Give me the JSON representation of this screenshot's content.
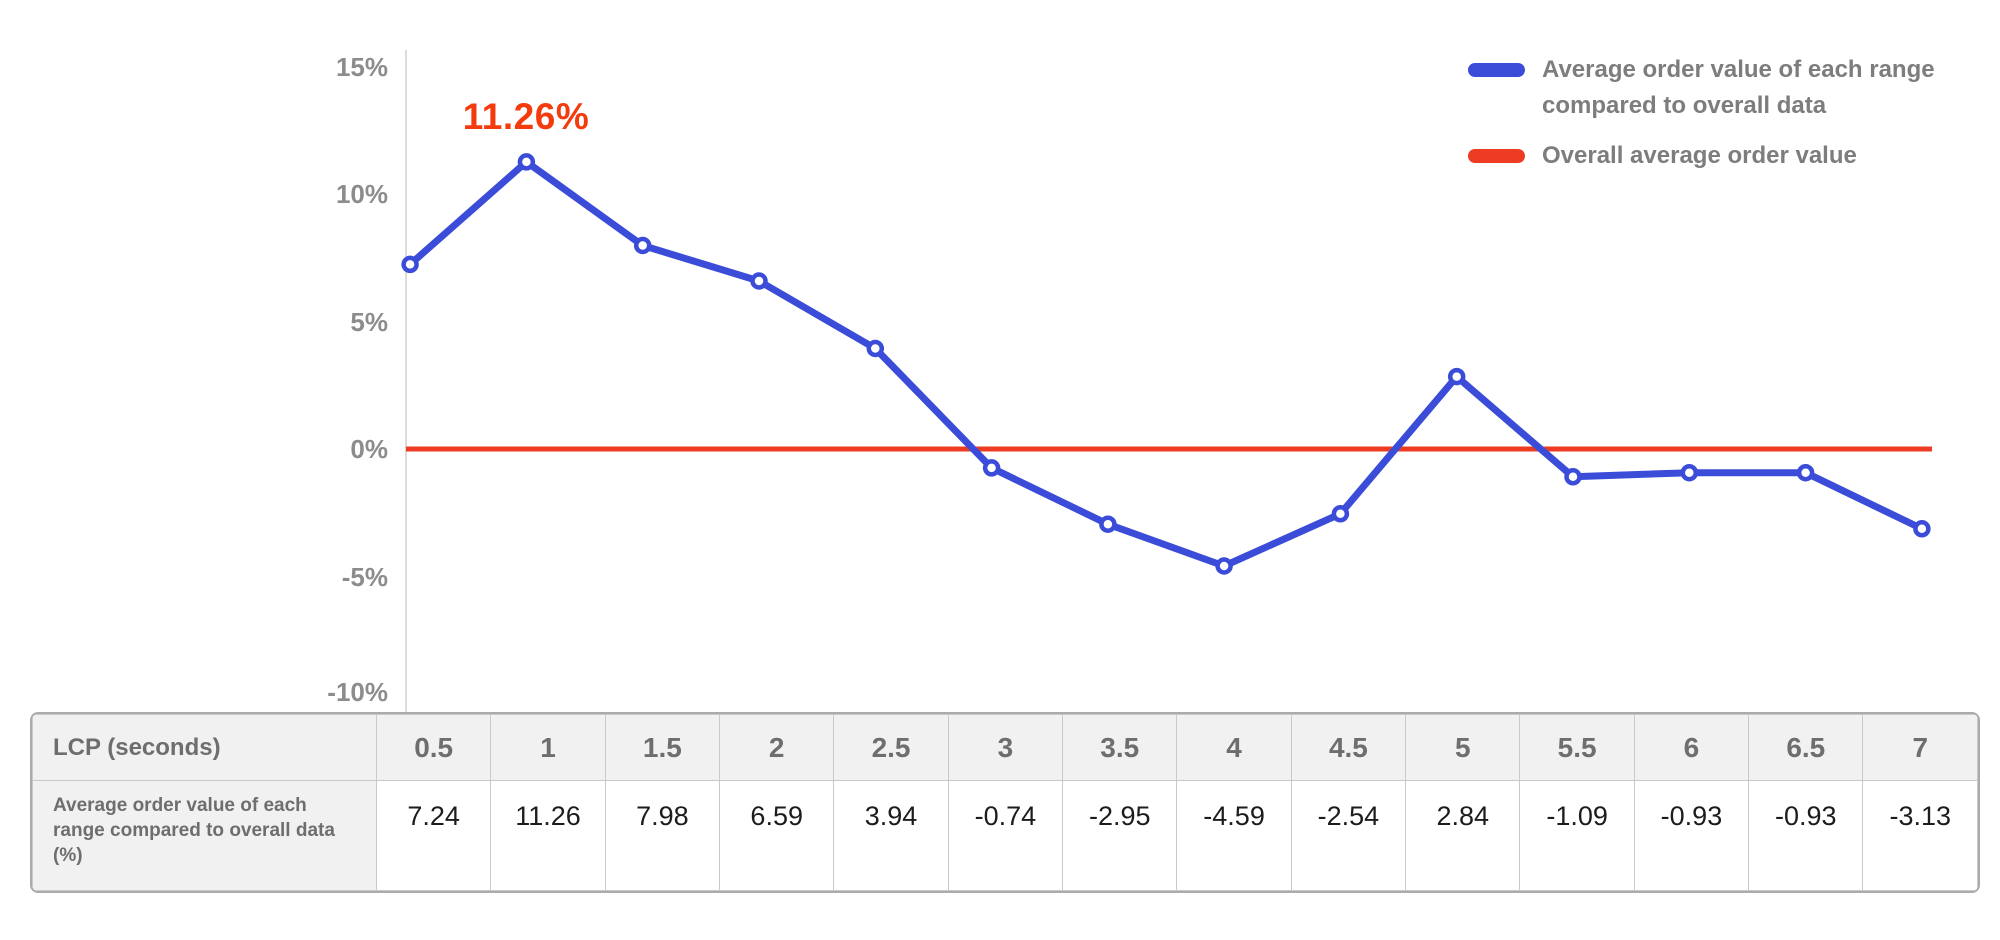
{
  "chart_data": {
    "type": "line",
    "x_values": [
      0.5,
      1,
      1.5,
      2,
      2.5,
      3,
      3.5,
      4,
      4.5,
      5,
      5.5,
      6,
      6.5,
      7
    ],
    "xlabel": "LCP (seconds)",
    "ylabel": "",
    "ylim": [
      -10,
      15
    ],
    "y_tick_labels": [
      "15%",
      "10%",
      "5%",
      "0%",
      "-5%",
      "-10%"
    ],
    "y_tick_values": [
      15,
      10,
      5,
      0,
      -5,
      -10
    ],
    "grid": false,
    "legend_position": "top-right",
    "series": [
      {
        "name": "Average order value of each range compared to overall data",
        "color": "#3b4dd8",
        "values": [
          7.24,
          11.26,
          7.98,
          6.59,
          3.94,
          -0.74,
          -2.95,
          -4.59,
          -2.54,
          2.84,
          -1.09,
          -0.93,
          -0.93,
          -3.13
        ]
      },
      {
        "name": "Overall average order value",
        "color": "#ee3c22",
        "values": [
          0,
          0,
          0,
          0,
          0,
          0,
          0,
          0,
          0,
          0,
          0,
          0,
          0,
          0
        ]
      }
    ],
    "annotation": {
      "text": "11.26%",
      "x_index": 1,
      "color": "#f43b0d"
    }
  },
  "legend": {
    "items": [
      {
        "label": "Average order value of each range compared to overall data",
        "color": "#3b4dd8"
      },
      {
        "label": "Overall average order value",
        "color": "#ee3c22"
      }
    ]
  },
  "table": {
    "row1_label": "LCP (seconds)",
    "row2_label": "Average order value of each range compared to overall data (%)",
    "columns": [
      "0.5",
      "1",
      "1.5",
      "2",
      "2.5",
      "3",
      "3.5",
      "4",
      "4.5",
      "5",
      "5.5",
      "6",
      "6.5",
      "7"
    ],
    "values": [
      "7.24",
      "11.26",
      "7.98",
      "6.59",
      "3.94",
      "-0.74",
      "-2.95",
      "-4.59",
      "-2.54",
      "2.84",
      "-1.09",
      "-0.93",
      "-0.93",
      "-3.13"
    ]
  }
}
